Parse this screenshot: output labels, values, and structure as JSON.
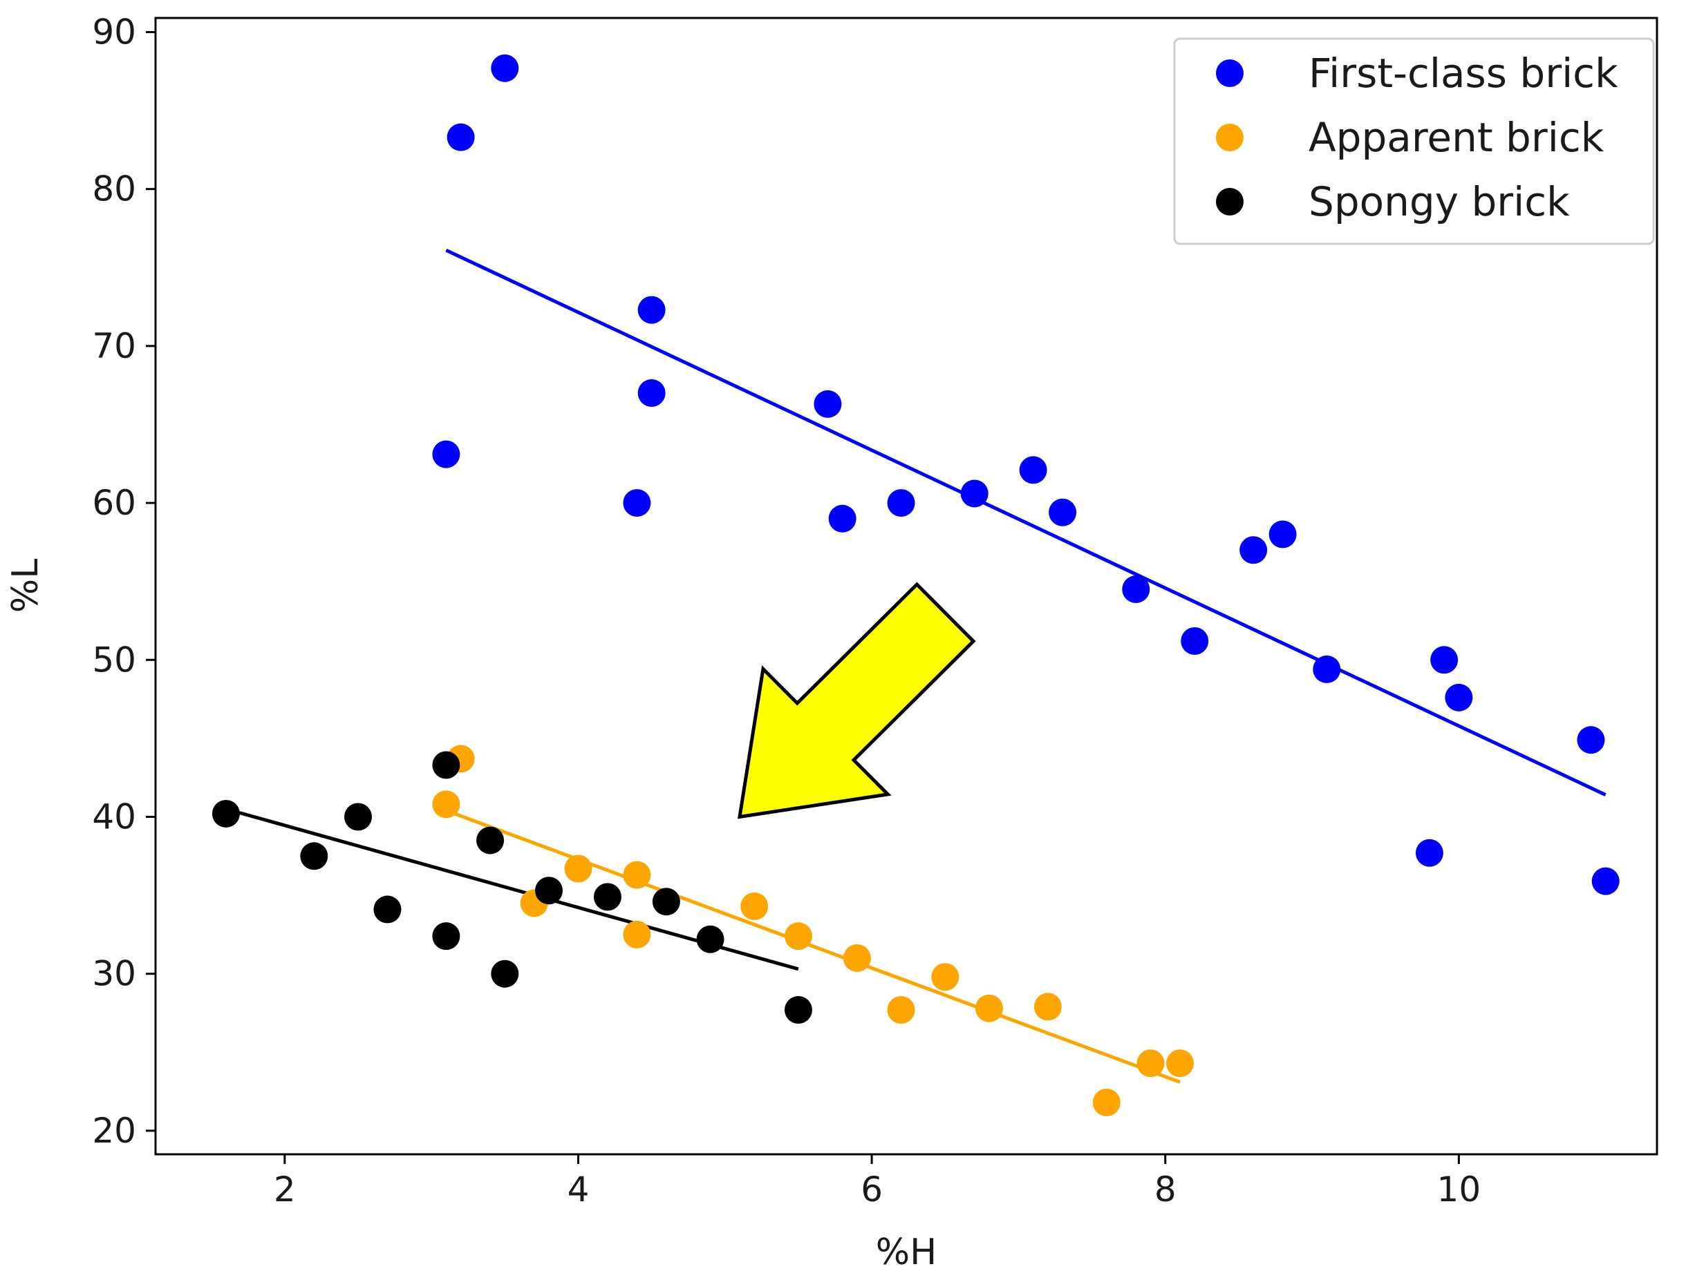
{
  "chart_data": {
    "type": "scatter",
    "title": "",
    "xlabel": "%H",
    "ylabel": "%L",
    "xlim": [
      1.12,
      11.35
    ],
    "ylim": [
      18.5,
      90.9
    ],
    "xticks": [
      2,
      4,
      6,
      8,
      10
    ],
    "yticks": [
      20,
      30,
      40,
      50,
      60,
      70,
      80,
      90
    ],
    "grid": false,
    "legend_position": "top-right",
    "annotations": [
      {
        "type": "arrow",
        "color": "#ffff00",
        "outline": "#000000",
        "direction": "down-left",
        "from": [
          6.5,
          53
        ],
        "to": [
          5.1,
          40
        ]
      }
    ],
    "series": [
      {
        "name": "First-class brick",
        "color": "#0000ff",
        "points": [
          [
            3.5,
            87.7
          ],
          [
            3.2,
            83.3
          ],
          [
            3.1,
            63.1
          ],
          [
            4.5,
            72.3
          ],
          [
            4.5,
            67.0
          ],
          [
            4.4,
            60.0
          ],
          [
            5.7,
            66.3
          ],
          [
            5.8,
            59.0
          ],
          [
            6.2,
            60.0
          ],
          [
            6.7,
            60.6
          ],
          [
            7.1,
            62.1
          ],
          [
            7.3,
            59.4
          ],
          [
            7.8,
            54.5
          ],
          [
            8.2,
            51.2
          ],
          [
            8.6,
            57.0
          ],
          [
            8.8,
            58.0
          ],
          [
            9.1,
            49.4
          ],
          [
            9.9,
            50.0
          ],
          [
            10.0,
            47.6
          ],
          [
            9.8,
            37.7
          ],
          [
            10.9,
            44.9
          ],
          [
            11.0,
            35.9
          ]
        ],
        "fit": {
          "x": [
            3.1,
            11.0
          ],
          "y": [
            76.1,
            41.4
          ]
        }
      },
      {
        "name": "Apparent brick",
        "color": "#ffa500",
        "points": [
          [
            3.2,
            43.7
          ],
          [
            3.1,
            40.8
          ],
          [
            3.7,
            34.5
          ],
          [
            4.0,
            36.7
          ],
          [
            4.4,
            36.3
          ],
          [
            4.4,
            32.5
          ],
          [
            5.2,
            34.3
          ],
          [
            5.5,
            32.4
          ],
          [
            5.9,
            31.0
          ],
          [
            6.2,
            27.7
          ],
          [
            6.5,
            29.8
          ],
          [
            6.8,
            27.8
          ],
          [
            7.2,
            27.9
          ],
          [
            7.6,
            21.8
          ],
          [
            7.9,
            24.3
          ],
          [
            8.1,
            24.3
          ]
        ],
        "fit": {
          "x": [
            3.1,
            8.1
          ],
          "y": [
            40.4,
            23.1
          ]
        }
      },
      {
        "name": "Spongy brick",
        "color": "#000000",
        "points": [
          [
            1.6,
            40.2
          ],
          [
            2.2,
            37.5
          ],
          [
            2.5,
            40.0
          ],
          [
            2.7,
            34.1
          ],
          [
            3.1,
            32.4
          ],
          [
            3.1,
            43.3
          ],
          [
            3.4,
            38.5
          ],
          [
            3.5,
            30.0
          ],
          [
            3.8,
            35.3
          ],
          [
            4.2,
            34.9
          ],
          [
            4.6,
            34.6
          ],
          [
            4.9,
            32.2
          ],
          [
            5.5,
            27.7
          ]
        ],
        "fit": {
          "x": [
            1.6,
            5.5
          ],
          "y": [
            40.5,
            30.3
          ]
        }
      }
    ]
  }
}
